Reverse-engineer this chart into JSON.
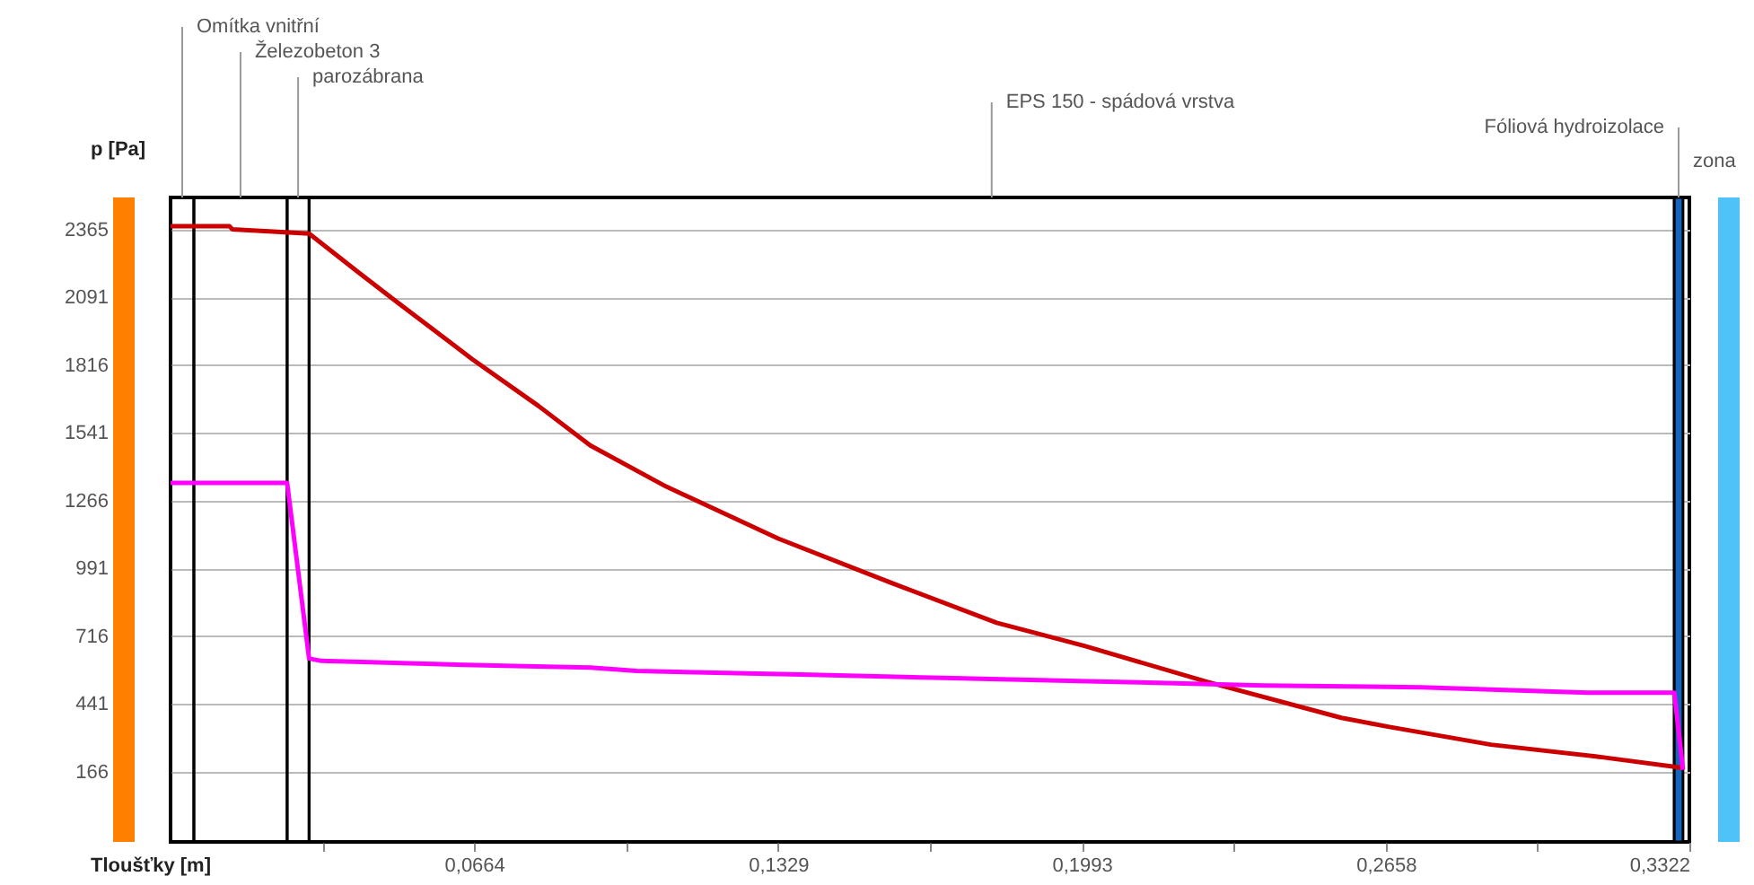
{
  "chart_data": {
    "type": "line",
    "xlabel": "Tloušťky [m]",
    "ylabel": "p [Pa]",
    "xlim": [
      0,
      0.3322
    ],
    "ylim": [
      -120,
      2497
    ],
    "xticks": [
      {
        "value": 0.0332,
        "label": null
      },
      {
        "value": 0.0664,
        "label": "0,0664"
      },
      {
        "value": 0.0996,
        "label": null
      },
      {
        "value": 0.1329,
        "label": "0,1329"
      },
      {
        "value": 0.1661,
        "label": null
      },
      {
        "value": 0.1993,
        "label": "0,1993"
      },
      {
        "value": 0.2325,
        "label": null
      },
      {
        "value": 0.2658,
        "label": "0,2658"
      },
      {
        "value": 0.299,
        "label": null
      },
      {
        "value": 0.3322,
        "label": "0,3322"
      }
    ],
    "yticks": [
      166,
      441,
      716,
      991,
      1266,
      1541,
      1816,
      2091,
      2365
    ],
    "grid": "y",
    "legend": false,
    "series": [
      {
        "color": "#cc0000",
        "x": [
          0,
          0.0129,
          0.0135,
          0.0303,
          0.0413,
          0.049,
          0.066,
          0.0805,
          0.0918,
          0.1084,
          0.1329,
          0.1579,
          0.1807,
          0.1999,
          0.2267,
          0.2561,
          0.2663,
          0.2888,
          0.3131,
          0.3289,
          0.3308
        ],
        "values": [
          2380,
          2380,
          2368,
          2350,
          2190,
          2080,
          1840,
          1650,
          1490,
          1323,
          1112,
          930,
          770,
          676,
          530,
          384,
          348,
          275,
          224,
          185,
          180
        ]
      },
      {
        "color": "#ff00ff",
        "x": [
          0,
          0.0255,
          0.0303,
          0.033,
          0.0708,
          0.0918,
          0.102,
          0.138,
          0.171,
          0.2071,
          0.239,
          0.2736,
          0.31,
          0.3289,
          0.3308
        ],
        "values": [
          1338,
          1338,
          625,
          615,
          596,
          588,
          574,
          560,
          545,
          530,
          515,
          508,
          486,
          486,
          173
        ]
      }
    ],
    "bands": [
      {
        "axis": "x",
        "from": 0,
        "to": 0.0051,
        "label": "Omítka vnitřní"
      },
      {
        "axis": "x",
        "from": 0.0051,
        "to": 0.0255,
        "label": "Železobeton 3"
      },
      {
        "axis": "x",
        "from": 0.0255,
        "to": 0.0303,
        "label": "parozábrana"
      },
      {
        "axis": "x",
        "from": 0.0303,
        "to": 0.3289,
        "label": "EPS 150 - spádová vrstva"
      },
      {
        "axis": "x",
        "from": 0.3289,
        "to": 0.3308,
        "label": "Fóliová hydroizolace",
        "color": "#1565c0"
      }
    ],
    "annotations": [
      "zona"
    ]
  }
}
